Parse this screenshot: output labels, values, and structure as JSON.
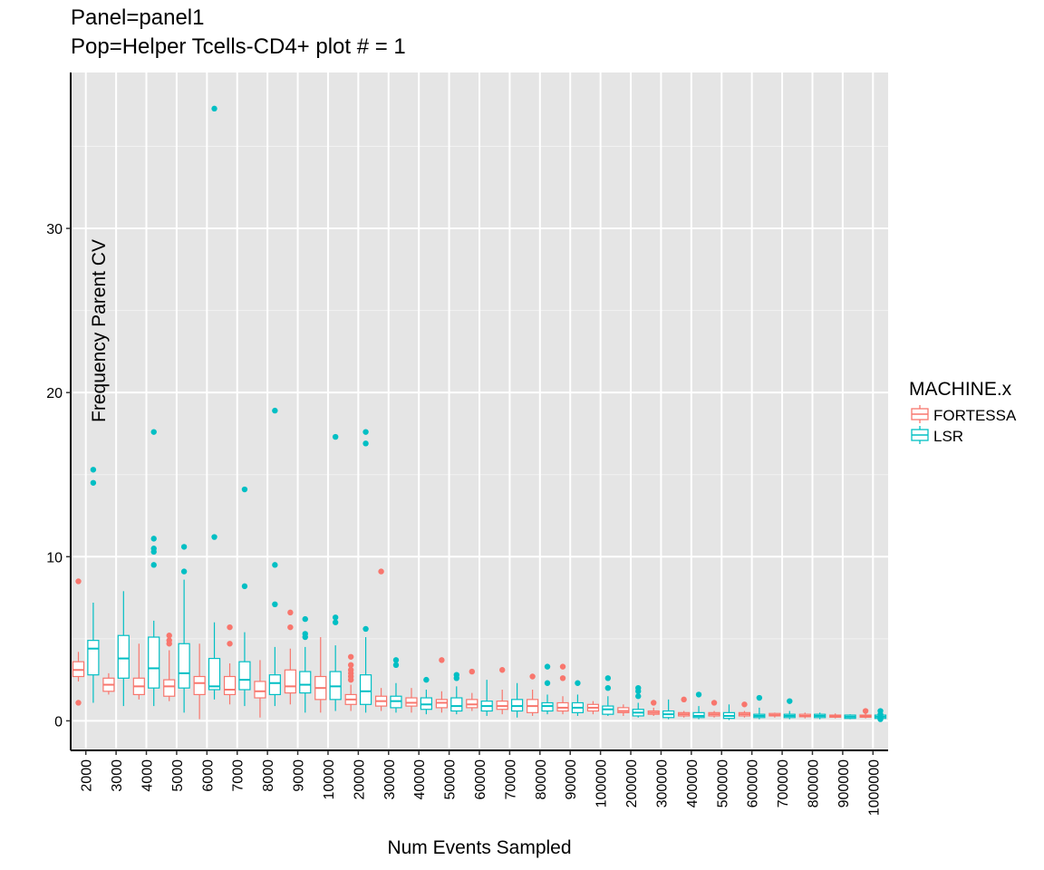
{
  "chart_data": {
    "type": "boxplot",
    "title": "Panel=panel1",
    "subtitle": "Pop=Helper Tcells-CD4+ plot # = 1",
    "xlabel": "Num Events Sampled",
    "ylabel": "Frequency Parent CV",
    "ylim": [
      -1.8,
      39.5
    ],
    "yticks": [
      0,
      10,
      20,
      30
    ],
    "grid": true,
    "legend": {
      "title": "MACHINE.x",
      "position": "right"
    },
    "categories": [
      "2000",
      "3000",
      "4000",
      "5000",
      "6000",
      "7000",
      "8000",
      "9000",
      "10000",
      "20000",
      "30000",
      "40000",
      "50000",
      "60000",
      "70000",
      "80000",
      "90000",
      "100000",
      "200000",
      "300000",
      "400000",
      "500000",
      "600000",
      "700000",
      "800000",
      "900000",
      "1000000"
    ],
    "series": [
      {
        "name": "FORTESSA",
        "color": "#F8766D",
        "boxes": [
          {
            "min": 2.4,
            "q1": 2.7,
            "median": 3.1,
            "q3": 3.6,
            "max": 4.2,
            "outliers": [
              8.5,
              1.1
            ]
          },
          {
            "min": 1.6,
            "q1": 1.8,
            "median": 2.2,
            "q3": 2.6,
            "max": 2.9,
            "outliers": []
          },
          {
            "min": 1.3,
            "q1": 1.6,
            "median": 2.1,
            "q3": 2.6,
            "max": 4.7,
            "outliers": []
          },
          {
            "min": 1.2,
            "q1": 1.5,
            "median": 2.1,
            "q3": 2.5,
            "max": 4.3,
            "outliers": [
              5.2,
              4.9,
              4.7
            ]
          },
          {
            "min": 0.1,
            "q1": 1.6,
            "median": 2.3,
            "q3": 2.7,
            "max": 4.7,
            "outliers": []
          },
          {
            "min": 1.0,
            "q1": 1.6,
            "median": 1.9,
            "q3": 2.7,
            "max": 3.5,
            "outliers": [
              5.7,
              4.7
            ]
          },
          {
            "min": 0.2,
            "q1": 1.4,
            "median": 1.8,
            "q3": 2.4,
            "max": 3.7,
            "outliers": []
          },
          {
            "min": 1.0,
            "q1": 1.7,
            "median": 2.1,
            "q3": 3.1,
            "max": 4.4,
            "outliers": [
              6.6,
              5.7
            ]
          },
          {
            "min": 0.5,
            "q1": 1.3,
            "median": 2.0,
            "q3": 2.7,
            "max": 5.1,
            "outliers": []
          },
          {
            "min": 0.6,
            "q1": 1.0,
            "median": 1.3,
            "q3": 1.6,
            "max": 2.2,
            "outliers": [
              3.9,
              3.4,
              3.1,
              2.9,
              2.7,
              2.5
            ]
          },
          {
            "min": 0.6,
            "q1": 0.9,
            "median": 1.2,
            "q3": 1.5,
            "max": 2.0,
            "outliers": [
              9.1
            ]
          },
          {
            "min": 0.5,
            "q1": 0.9,
            "median": 1.1,
            "q3": 1.4,
            "max": 2.0,
            "outliers": []
          },
          {
            "min": 0.5,
            "q1": 0.8,
            "median": 1.1,
            "q3": 1.3,
            "max": 1.8,
            "outliers": [
              3.7
            ]
          },
          {
            "min": 0.6,
            "q1": 0.8,
            "median": 1.0,
            "q3": 1.3,
            "max": 1.7,
            "outliers": [
              3.0
            ]
          },
          {
            "min": 0.4,
            "q1": 0.7,
            "median": 0.9,
            "q3": 1.2,
            "max": 1.9,
            "outliers": [
              3.1
            ]
          },
          {
            "min": 0.3,
            "q1": 0.5,
            "median": 0.9,
            "q3": 1.3,
            "max": 1.9,
            "outliers": [
              2.7
            ]
          },
          {
            "min": 0.4,
            "q1": 0.6,
            "median": 0.8,
            "q3": 1.1,
            "max": 1.5,
            "outliers": [
              3.3,
              2.6
            ]
          },
          {
            "min": 0.4,
            "q1": 0.6,
            "median": 0.8,
            "q3": 1.0,
            "max": 1.2,
            "outliers": []
          },
          {
            "min": 0.3,
            "q1": 0.5,
            "median": 0.6,
            "q3": 0.8,
            "max": 1.0,
            "outliers": []
          },
          {
            "min": 0.3,
            "q1": 0.4,
            "median": 0.5,
            "q3": 0.6,
            "max": 0.8,
            "outliers": [
              1.1
            ]
          },
          {
            "min": 0.2,
            "q1": 0.3,
            "median": 0.4,
            "q3": 0.5,
            "max": 0.6,
            "outliers": [
              1.3
            ]
          },
          {
            "min": 0.2,
            "q1": 0.3,
            "median": 0.4,
            "q3": 0.5,
            "max": 0.6,
            "outliers": [
              1.1
            ]
          },
          {
            "min": 0.2,
            "q1": 0.3,
            "median": 0.4,
            "q3": 0.5,
            "max": 0.6,
            "outliers": [
              1.0
            ]
          },
          {
            "min": 0.2,
            "q1": 0.3,
            "median": 0.35,
            "q3": 0.45,
            "max": 0.5,
            "outliers": []
          },
          {
            "min": 0.15,
            "q1": 0.25,
            "median": 0.3,
            "q3": 0.4,
            "max": 0.5,
            "outliers": []
          },
          {
            "min": 0.15,
            "q1": 0.22,
            "median": 0.28,
            "q3": 0.35,
            "max": 0.45,
            "outliers": []
          },
          {
            "min": 0.15,
            "q1": 0.22,
            "median": 0.28,
            "q3": 0.35,
            "max": 0.45,
            "outliers": [
              0.6
            ]
          }
        ]
      },
      {
        "name": "LSR",
        "color": "#00BFC4",
        "boxes": [
          {
            "min": 1.1,
            "q1": 2.8,
            "median": 4.4,
            "q3": 4.9,
            "max": 7.2,
            "outliers": [
              15.3,
              14.5
            ]
          },
          {
            "min": 0.9,
            "q1": 2.6,
            "median": 3.8,
            "q3": 5.2,
            "max": 7.9,
            "outliers": []
          },
          {
            "min": 0.9,
            "q1": 2.0,
            "median": 3.2,
            "q3": 5.1,
            "max": 6.1,
            "outliers": [
              17.6,
              11.1,
              10.5,
              10.3,
              9.5
            ]
          },
          {
            "min": 0.5,
            "q1": 2.0,
            "median": 2.9,
            "q3": 4.7,
            "max": 8.6,
            "outliers": [
              10.6,
              9.1
            ]
          },
          {
            "min": 1.3,
            "q1": 1.9,
            "median": 2.1,
            "q3": 3.8,
            "max": 6.0,
            "outliers": [
              37.3,
              11.2
            ]
          },
          {
            "min": 0.9,
            "q1": 1.9,
            "median": 2.5,
            "q3": 3.6,
            "max": 5.4,
            "outliers": [
              14.1,
              8.2
            ]
          },
          {
            "min": 0.9,
            "q1": 1.6,
            "median": 2.3,
            "q3": 2.8,
            "max": 4.5,
            "outliers": [
              18.9,
              9.5,
              7.1
            ]
          },
          {
            "min": 0.5,
            "q1": 1.7,
            "median": 2.2,
            "q3": 3.0,
            "max": 4.5,
            "outliers": [
              6.2,
              5.3,
              5.1
            ]
          },
          {
            "min": 0.6,
            "q1": 1.3,
            "median": 2.1,
            "q3": 3.0,
            "max": 4.6,
            "outliers": [
              17.3,
              6.3,
              6.0
            ]
          },
          {
            "min": 0.5,
            "q1": 1.0,
            "median": 1.8,
            "q3": 2.8,
            "max": 5.1,
            "outliers": [
              17.6,
              16.9,
              5.6
            ]
          },
          {
            "min": 0.5,
            "q1": 0.8,
            "median": 1.2,
            "q3": 1.5,
            "max": 2.3,
            "outliers": [
              3.7,
              3.4
            ]
          },
          {
            "min": 0.4,
            "q1": 0.7,
            "median": 1.0,
            "q3": 1.4,
            "max": 1.9,
            "outliers": [
              2.5
            ]
          },
          {
            "min": 0.4,
            "q1": 0.6,
            "median": 0.9,
            "q3": 1.4,
            "max": 2.1,
            "outliers": [
              2.8,
              2.6
            ]
          },
          {
            "min": 0.3,
            "q1": 0.6,
            "median": 0.9,
            "q3": 1.2,
            "max": 2.5,
            "outliers": []
          },
          {
            "min": 0.2,
            "q1": 0.6,
            "median": 0.9,
            "q3": 1.3,
            "max": 2.3,
            "outliers": []
          },
          {
            "min": 0.4,
            "q1": 0.6,
            "median": 0.9,
            "q3": 1.1,
            "max": 1.6,
            "outliers": [
              3.3,
              2.3
            ]
          },
          {
            "min": 0.3,
            "q1": 0.5,
            "median": 0.8,
            "q3": 1.1,
            "max": 1.6,
            "outliers": [
              2.3
            ]
          },
          {
            "min": 0.3,
            "q1": 0.4,
            "median": 0.7,
            "q3": 0.9,
            "max": 1.5,
            "outliers": [
              2.6,
              2.0
            ]
          },
          {
            "min": 0.2,
            "q1": 0.3,
            "median": 0.5,
            "q3": 0.7,
            "max": 1.1,
            "outliers": [
              2.0,
              1.8,
              1.5
            ]
          },
          {
            "min": 0.1,
            "q1": 0.2,
            "median": 0.4,
            "q3": 0.6,
            "max": 1.3,
            "outliers": []
          },
          {
            "min": 0.1,
            "q1": 0.2,
            "median": 0.3,
            "q3": 0.5,
            "max": 0.9,
            "outliers": [
              1.6
            ]
          },
          {
            "min": 0.05,
            "q1": 0.15,
            "median": 0.3,
            "q3": 0.5,
            "max": 1.0,
            "outliers": []
          },
          {
            "min": 0.1,
            "q1": 0.2,
            "median": 0.3,
            "q3": 0.4,
            "max": 0.8,
            "outliers": [
              1.4
            ]
          },
          {
            "min": 0.1,
            "q1": 0.2,
            "median": 0.3,
            "q3": 0.4,
            "max": 0.6,
            "outliers": [
              1.2
            ]
          },
          {
            "min": 0.1,
            "q1": 0.2,
            "median": 0.3,
            "q3": 0.4,
            "max": 0.5,
            "outliers": []
          },
          {
            "min": 0.1,
            "q1": 0.15,
            "median": 0.25,
            "q3": 0.35,
            "max": 0.4,
            "outliers": []
          },
          {
            "min": 0.05,
            "q1": 0.15,
            "median": 0.25,
            "q3": 0.35,
            "max": 0.45,
            "outliers": [
              0.6,
              0.4,
              0.2,
              0.1
            ]
          }
        ]
      }
    ]
  }
}
